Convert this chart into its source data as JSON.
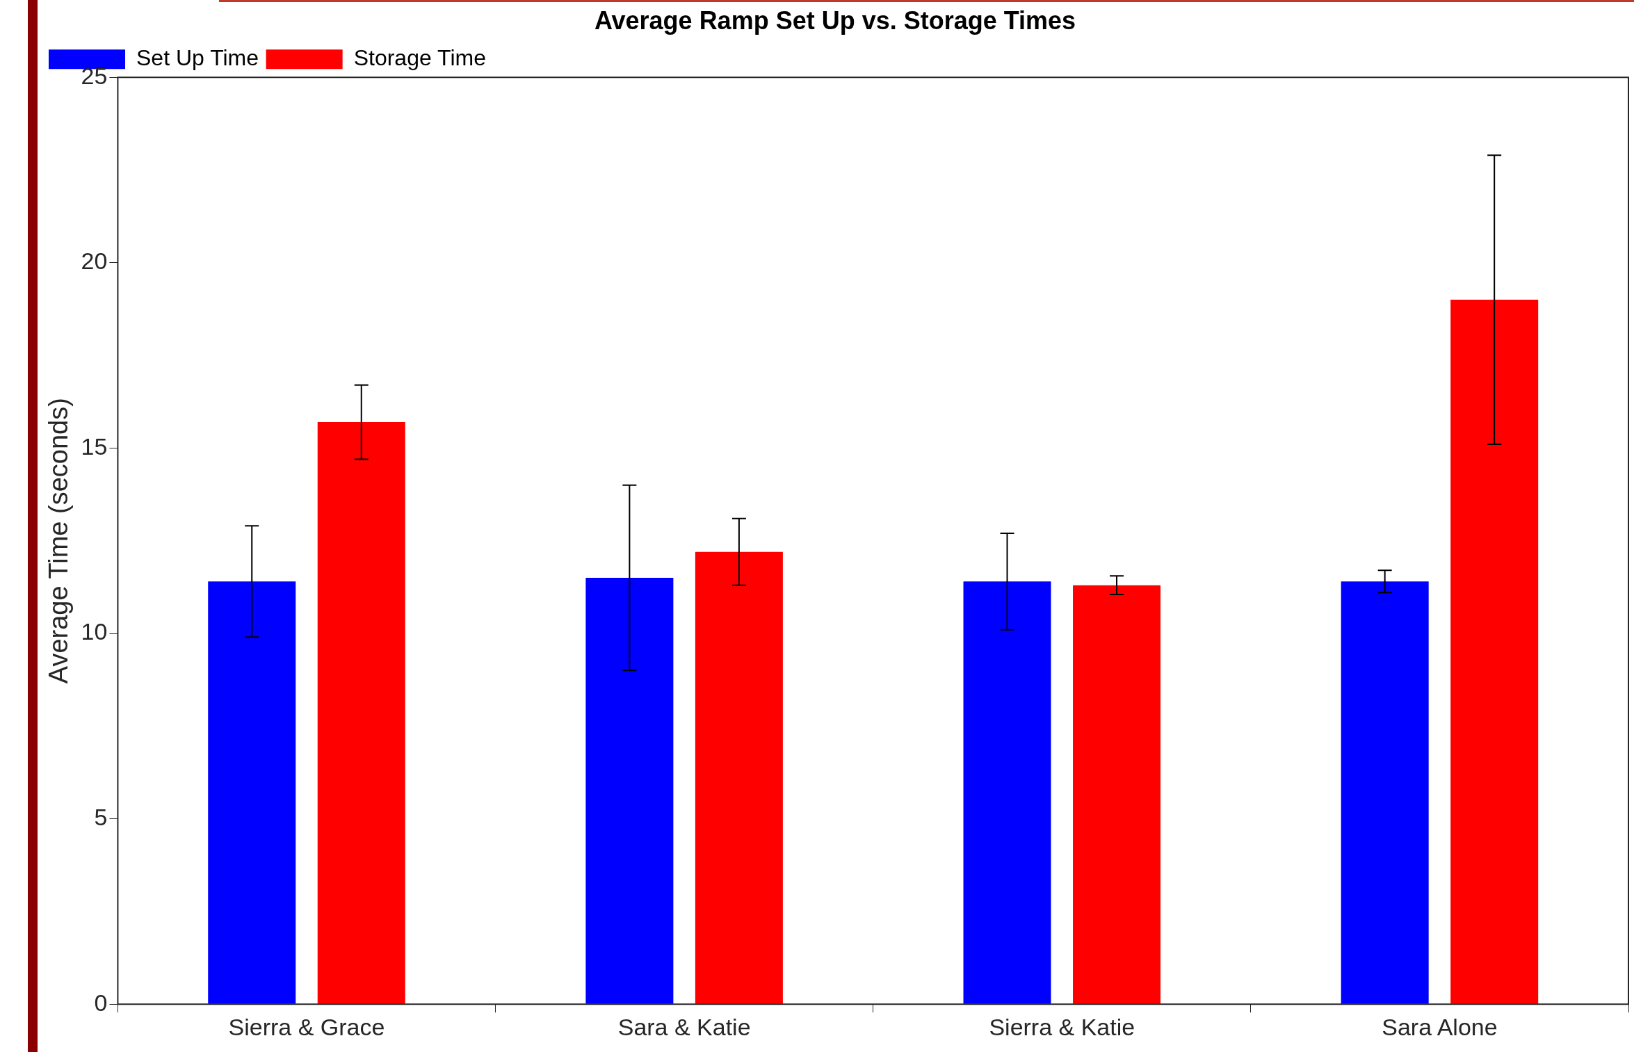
{
  "chart_data": {
    "type": "bar",
    "title": "Average Ramp Set Up vs. Storage Times",
    "ylabel": "Average Time (seconds)",
    "categories": [
      "Sierra & Grace",
      "Sara & Katie",
      "Sierra & Katie",
      "Sara Alone"
    ],
    "series": [
      {
        "name": "Set Up Time",
        "color": "#0000ff",
        "values": [
          11.4,
          11.5,
          11.4,
          11.4
        ],
        "errors": [
          1.5,
          2.5,
          1.3,
          0.3
        ]
      },
      {
        "name": "Storage Time",
        "color": "#ff0000",
        "values": [
          15.7,
          12.2,
          11.3,
          19.0
        ],
        "errors": [
          1.0,
          0.9,
          0.25,
          3.9
        ]
      }
    ],
    "ylim": [
      0,
      25
    ],
    "yticks": [
      0,
      5,
      10,
      15,
      20,
      25
    ],
    "grid": false,
    "legend": "top left"
  }
}
